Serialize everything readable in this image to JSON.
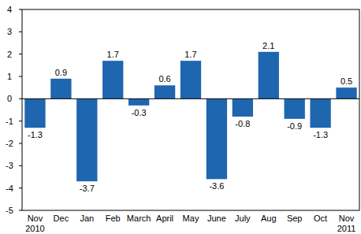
{
  "chart_data": {
    "type": "bar",
    "categories": [
      "Nov\n2010",
      "Dec",
      "Jan",
      "Feb",
      "March",
      "April",
      "May",
      "June",
      "July",
      "Aug",
      "Sep",
      "Oct",
      "Nov\n2011"
    ],
    "values": [
      -1.3,
      0.9,
      -3.7,
      1.7,
      -0.3,
      0.6,
      1.7,
      -3.6,
      -0.8,
      2.1,
      -0.9,
      -1.3,
      0.5
    ],
    "color": "#1f66b0",
    "ylim": [
      -5,
      4
    ],
    "yticks": [
      -5,
      -4,
      -3,
      -2,
      -1,
      0,
      1,
      2,
      3,
      4
    ],
    "grid": false,
    "data_labels": true
  }
}
